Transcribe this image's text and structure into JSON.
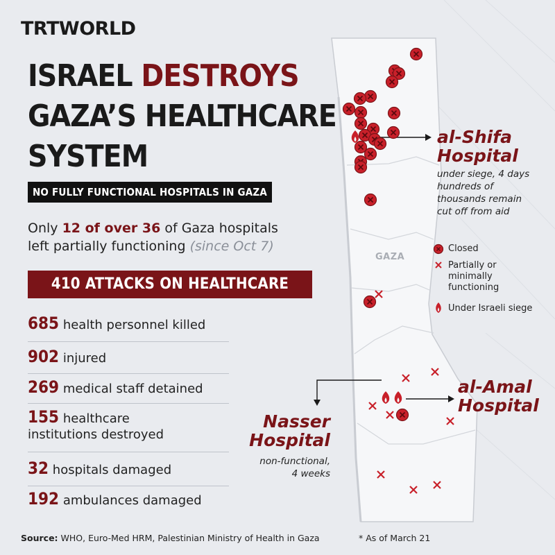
{
  "logo": "TRTWORLD",
  "headline": {
    "line1_a": "ISRAEL ",
    "line1_b": "DESTROYS",
    "line2": "GAZA’S HEALTHCARE",
    "line3": "SYSTEM"
  },
  "banner_black": "NO FULLY FUNCTIONAL HOSPITALS IN GAZA",
  "intro": {
    "pre": "Only ",
    "highlight": "12 of over 36",
    "mid": " of Gaza hospitals",
    "line2": "left partially functioning ",
    "since": "(since Oct 7)"
  },
  "banner_red": "410 ATTACKS ON HEALTHCARE",
  "stats": [
    {
      "num": "685",
      "text": "health personnel killed"
    },
    {
      "num": "902",
      "text": "injured"
    },
    {
      "num": "269",
      "text": "medical staff detained"
    },
    {
      "num": "155",
      "text": "healthcare",
      "text2": "institutions destroyed"
    },
    {
      "num": "32",
      "text": "hospitals damaged"
    },
    {
      "num": "192",
      "text": "ambulances damaged"
    }
  ],
  "source": {
    "label": "Source:",
    "text": "WHO, Euro-Med HRM, Palestinian Ministry of Health in Gaza"
  },
  "as_of": "*  As of March 21",
  "map": {
    "region_label": "GAZA",
    "colors": {
      "accent": "#7a1418",
      "marker": "#c8202a",
      "land": "#f4f5f7",
      "sea": "#e9ebef"
    },
    "callouts": {
      "shifa": {
        "title1": "al-Shifa",
        "title2": "Hospital",
        "sub": [
          "under siege, 4 days",
          "hundreds of",
          "thousands remain",
          "cut off from aid"
        ]
      },
      "amal": {
        "title1": "al-Amal",
        "title2": "Hospital"
      },
      "nasser": {
        "title1": "Nasser",
        "title2": "Hospital",
        "sub": [
          "non-functional,",
          "4 weeks"
        ]
      }
    },
    "legend": [
      {
        "icon": "closed-marker-icon",
        "label": "Closed"
      },
      {
        "icon": "partial-x-icon",
        "label": "Partially or",
        "label2": "minimally",
        "label3": "functioning"
      },
      {
        "icon": "flame-icon",
        "label": "Under Israeli siege"
      }
    ]
  }
}
